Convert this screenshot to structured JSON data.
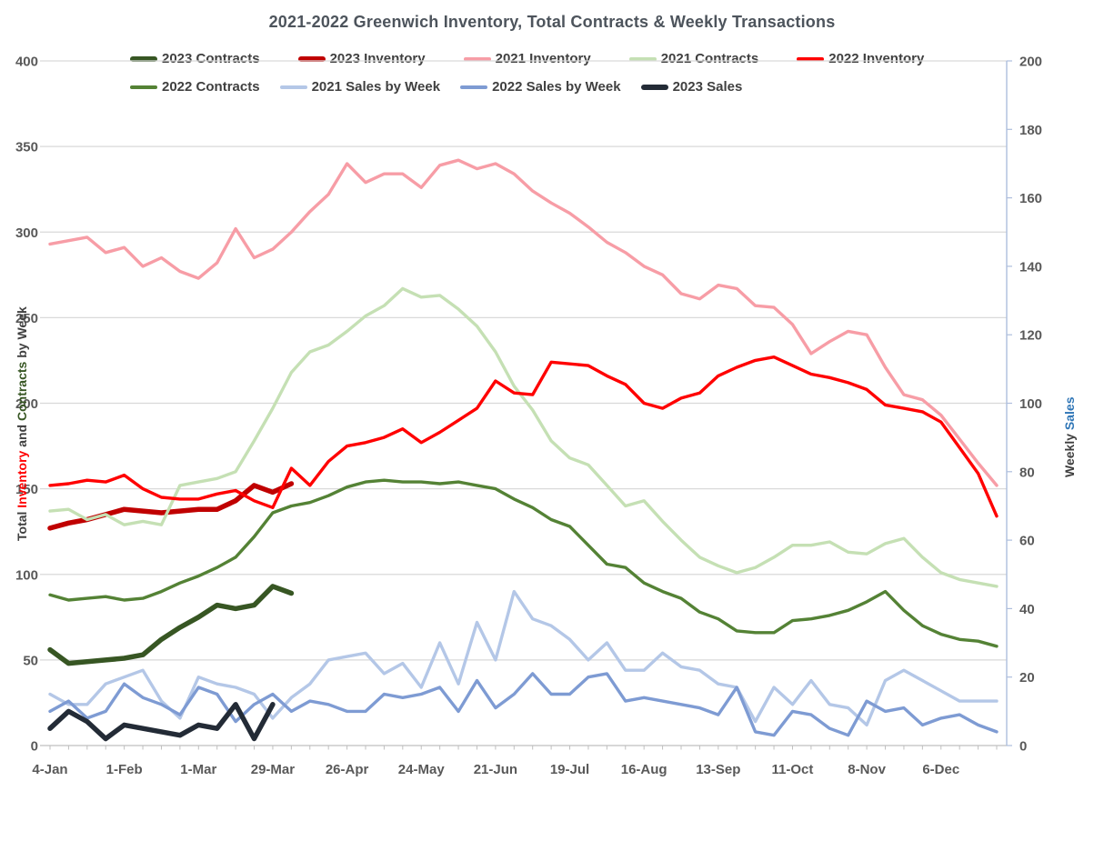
{
  "title": "2021-2022 Greenwich Inventory, Total Contracts & Weekly Transactions",
  "colors": {
    "c2023_contracts": "#375623",
    "c2023_inventory": "#C00000",
    "c2021_inventory": "#F79DA6",
    "c2021_contracts": "#C5E0B4",
    "c2022_inventory": "#FF0000",
    "c2022_contracts": "#548235",
    "c2021_sales": "#B4C7E7",
    "c2022_sales": "#7E9BD3",
    "c2023_sales": "#232B36",
    "gridline": "#D9D9D9",
    "axis_line": "#BFBFBF",
    "right_axis_line": "#AEBEDD",
    "tick_label": "#595959"
  },
  "legend": {
    "row1": [
      {
        "label": "2023 Contracts",
        "color": "#375623",
        "thick": true
      },
      {
        "label": "2023 Inventory",
        "color": "#C00000",
        "thick": true
      },
      {
        "label": "2021 Inventory",
        "color": "#F79DA6",
        "thick": false
      },
      {
        "label": "2021 Contracts",
        "color": "#C5E0B4",
        "thick": false
      },
      {
        "label": "2022 Inventory",
        "color": "#FF0000",
        "thick": false
      }
    ],
    "row2": [
      {
        "label": "2022 Contracts",
        "color": "#548235",
        "thick": false
      },
      {
        "label": "2021 Sales by Week",
        "color": "#B4C7E7",
        "thick": false
      },
      {
        "label": "2022 Sales by Week",
        "color": "#7E9BD3",
        "thick": false
      },
      {
        "label": "2023 Sales",
        "color": "#232B36",
        "thick": true
      }
    ]
  },
  "axes": {
    "left": {
      "t1": "Total ",
      "t2": "Inventory",
      "t3": " and ",
      "t4": "Contracts",
      "t5": " by Week",
      "t2_color": "#FF0000",
      "t4_color": "#375623",
      "ticks": [
        0,
        50,
        100,
        150,
        200,
        250,
        300,
        350,
        400
      ],
      "range": [
        0,
        400
      ]
    },
    "right": {
      "t1": "Weekly ",
      "t2": "Sales",
      "t2_color": "#2E75B6",
      "ticks": [
        0,
        20,
        40,
        60,
        80,
        100,
        120,
        140,
        160,
        180,
        200
      ],
      "range": [
        0,
        200
      ]
    },
    "x": {
      "labels": [
        "4-Jan",
        "1-Feb",
        "1-Mar",
        "29-Mar",
        "26-Apr",
        "24-May",
        "21-Jun",
        "19-Jul",
        "16-Aug",
        "13-Sep",
        "11-Oct",
        "8-Nov",
        "6-Dec"
      ],
      "label_weeks": [
        1,
        5,
        9,
        13,
        17,
        21,
        25,
        29,
        33,
        37,
        41,
        45,
        49
      ],
      "weeks_total": 52
    }
  },
  "chart_data": {
    "type": "line",
    "title": "2021-2022 Greenwich Inventory, Total Contracts & Weekly Transactions",
    "x_unit": "week",
    "x_tick_labels": [
      "4-Jan",
      "1-Feb",
      "1-Mar",
      "29-Mar",
      "26-Apr",
      "24-May",
      "21-Jun",
      "19-Jul",
      "16-Aug",
      "13-Sep",
      "11-Oct",
      "8-Nov",
      "6-Dec"
    ],
    "left_axis": {
      "label": "Total Inventory and Contracts by Week",
      "range": [
        0,
        400
      ],
      "step": 50
    },
    "right_axis": {
      "label": "Weekly Sales",
      "range": [
        0,
        200
      ],
      "step": 20
    },
    "grid": true,
    "legend_position": "top",
    "series": [
      {
        "name": "2023 Contracts",
        "axis": "left",
        "color": "#375623",
        "width": 5.5,
        "values": [
          56,
          48,
          49,
          50,
          51,
          53,
          62,
          69,
          75,
          82,
          80,
          82,
          93,
          89
        ]
      },
      {
        "name": "2023 Inventory",
        "axis": "left",
        "color": "#C00000",
        "width": 5.5,
        "values": [
          127,
          130,
          132,
          135,
          138,
          137,
          136,
          137,
          138,
          138,
          143,
          152,
          148,
          153
        ]
      },
      {
        "name": "2021 Inventory",
        "axis": "left",
        "color": "#F79DA6",
        "width": 3.4,
        "values": [
          293,
          295,
          297,
          288,
          291,
          280,
          285,
          277,
          273,
          282,
          302,
          285,
          290,
          300,
          312,
          322,
          340,
          329,
          334,
          334,
          326,
          339,
          342,
          337,
          340,
          334,
          324,
          317,
          311,
          303,
          294,
          288,
          280,
          275,
          264,
          261,
          269,
          267,
          257,
          256,
          246,
          229,
          236,
          242,
          240,
          221,
          205,
          202,
          193,
          179,
          165,
          152
        ]
      },
      {
        "name": "2021 Contracts",
        "axis": "left",
        "color": "#C5E0B4",
        "width": 3.4,
        "values": [
          137,
          138,
          132,
          135,
          129,
          131,
          129,
          152,
          154,
          156,
          160,
          178,
          197,
          218,
          230,
          234,
          242,
          251,
          257,
          267,
          262,
          263,
          255,
          245,
          230,
          210,
          196,
          178,
          168,
          164,
          152,
          140,
          143,
          131,
          120,
          110,
          105,
          101,
          104,
          110,
          117,
          117,
          119,
          113,
          112,
          118,
          121,
          110,
          101,
          97,
          95,
          93
        ]
      },
      {
        "name": "2022 Inventory",
        "axis": "left",
        "color": "#FF0000",
        "width": 3.4,
        "values": [
          152,
          153,
          155,
          154,
          158,
          150,
          145,
          144,
          144,
          147,
          149,
          143,
          139,
          162,
          152,
          166,
          175,
          177,
          180,
          185,
          177,
          183,
          190,
          197,
          213,
          206,
          205,
          224,
          223,
          222,
          216,
          211,
          200,
          197,
          203,
          206,
          216,
          221,
          225,
          227,
          222,
          217,
          215,
          212,
          208,
          199,
          197,
          195,
          189,
          174,
          159,
          134
        ]
      },
      {
        "name": "2022 Contracts",
        "axis": "left",
        "color": "#548235",
        "width": 3.4,
        "values": [
          88,
          85,
          86,
          87,
          85,
          86,
          90,
          95,
          99,
          104,
          110,
          122,
          136,
          140,
          142,
          146,
          151,
          154,
          155,
          154,
          154,
          153,
          154,
          152,
          150,
          144,
          139,
          132,
          128,
          117,
          106,
          104,
          95,
          90,
          86,
          78,
          74,
          67,
          66,
          66,
          73,
          74,
          76,
          79,
          84,
          90,
          79,
          70,
          65,
          62,
          61,
          58
        ]
      },
      {
        "name": "2021 Sales by Week",
        "axis": "right",
        "color": "#B4C7E7",
        "width": 3.4,
        "values": [
          15,
          12,
          12,
          18,
          20,
          22,
          13,
          8,
          20,
          18,
          17,
          15,
          8,
          14,
          18,
          25,
          26,
          27,
          21,
          24,
          17,
          30,
          18,
          36,
          25,
          45,
          37,
          35,
          31,
          25,
          30,
          22,
          22,
          27,
          23,
          22,
          18,
          17,
          7,
          17,
          12,
          19,
          12,
          11,
          6,
          19,
          22,
          19,
          16,
          13,
          13,
          13
        ]
      },
      {
        "name": "2022 Sales by Week",
        "axis": "right",
        "color": "#7E9BD3",
        "width": 3.4,
        "values": [
          10,
          13,
          8,
          10,
          18,
          14,
          12,
          9,
          17,
          15,
          7,
          12,
          15,
          10,
          13,
          12,
          10,
          10,
          15,
          14,
          15,
          17,
          10,
          19,
          11,
          15,
          21,
          15,
          15,
          20,
          21,
          13,
          14,
          13,
          12,
          11,
          9,
          17,
          4,
          3,
          10,
          9,
          5,
          3,
          13,
          10,
          11,
          6,
          8,
          9,
          6,
          4
        ]
      },
      {
        "name": "2023 Sales",
        "axis": "right",
        "color": "#232B36",
        "width": 5.5,
        "values": [
          5,
          10,
          7,
          2,
          6,
          5,
          4,
          3,
          6,
          5,
          12,
          2,
          12
        ]
      }
    ]
  }
}
